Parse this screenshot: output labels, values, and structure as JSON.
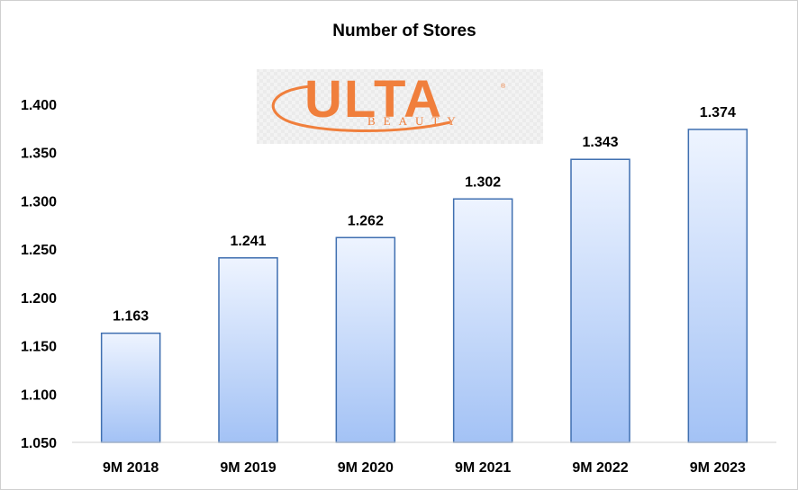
{
  "chart_data": {
    "type": "bar",
    "title": "Number of Stores",
    "categories": [
      "9M 2018",
      "9M 2019",
      "9M 2020",
      "9M 2021",
      "9M 2022",
      "9M 2023"
    ],
    "values": [
      1163,
      1241,
      1262,
      1302,
      1343,
      1374
    ],
    "data_labels": [
      "1.163",
      "1.241",
      "1.262",
      "1.302",
      "1.343",
      "1.374"
    ],
    "ylim": [
      1050,
      1400
    ],
    "yticks": [
      1050,
      1100,
      1150,
      1200,
      1250,
      1300,
      1350,
      1400
    ],
    "ytick_labels": [
      "1.050",
      "1.100",
      "1.150",
      "1.200",
      "1.250",
      "1.300",
      "1.350",
      "1.400"
    ],
    "xlabel": "",
    "ylabel": "",
    "grid": false,
    "legend": "none",
    "bar_color_top": "#eef4ff",
    "bar_color_bottom": "#a3c2f5",
    "bar_border": "#3f6fb0"
  },
  "logo": {
    "main": "ULTA",
    "sub": "BEAUTY",
    "reg": "®",
    "color": "#f07f3c"
  }
}
